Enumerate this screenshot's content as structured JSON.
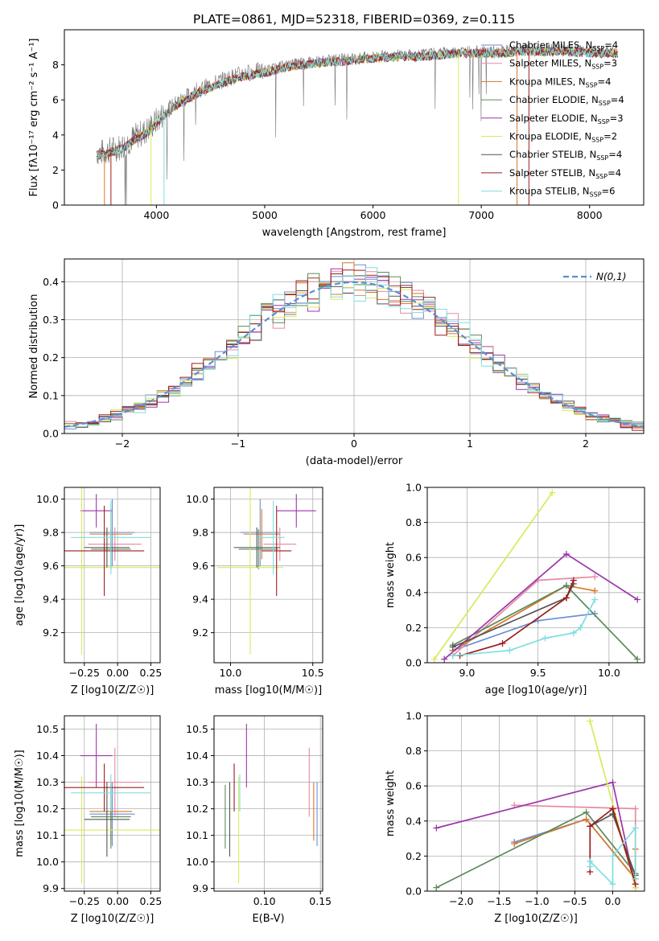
{
  "figure_title": "PLATE=0861, MJD=52318, FIBERID=0369, z=0.115",
  "models": [
    {
      "label": "Chabrier MILES, N",
      "sub": "SSP",
      "tail": "=4",
      "color": "#6c8ed6"
    },
    {
      "label": "Salpeter MILES, N",
      "sub": "SSP",
      "tail": "=3",
      "color": "#e68aa0"
    },
    {
      "label": "Kroupa MILES, N",
      "sub": "SSP",
      "tail": "=4",
      "color": "#d8772a"
    },
    {
      "label": "Chabrier ELODIE, N",
      "sub": "SSP",
      "tail": "=4",
      "color": "#5b8a5b"
    },
    {
      "label": "Salpeter ELODIE, N",
      "sub": "SSP",
      "tail": "=3",
      "color": "#9b37a8"
    },
    {
      "label": "Kroupa ELODIE, N",
      "sub": "SSP",
      "tail": "=2",
      "color": "#d9ea5a"
    },
    {
      "label": "Chabrier STELIB, N",
      "sub": "SSP",
      "tail": "=4",
      "color": "#555555"
    },
    {
      "label": "Salpeter STELIB, N",
      "sub": "SSP",
      "tail": "=4",
      "color": "#9e1c1c"
    },
    {
      "label": "Kroupa STELIB, N",
      "sub": "SSP",
      "tail": "=6",
      "color": "#7fdde0"
    }
  ],
  "chart_data": [
    {
      "id": "spectrum",
      "type": "line",
      "xlabel": "wavelength [Angstrom, rest frame]",
      "ylabel": "Flux [fλ10⁻¹⁷ erg cm⁻² s⁻¹ A⁻¹]",
      "xlim": [
        3150,
        8500
      ],
      "ylim": [
        0,
        10
      ],
      "xticks": [
        4000,
        5000,
        6000,
        7000,
        8000
      ],
      "yticks": [
        0,
        2,
        4,
        6,
        8
      ],
      "continuum": {
        "x": [
          3450,
          3500,
          3600,
          3700,
          3800,
          3900,
          4000,
          4100,
          4200,
          4400,
          4600,
          4800,
          5000,
          5200,
          5400,
          5600,
          5800,
          6000,
          6200,
          6400,
          6600,
          6800,
          7000,
          7200,
          7400,
          7600,
          7800,
          8000,
          8200,
          8260
        ],
        "y": [
          3.0,
          3.0,
          3.2,
          3.4,
          3.9,
          4.2,
          4.8,
          5.4,
          5.9,
          6.6,
          7.1,
          7.5,
          7.7,
          8.0,
          8.2,
          8.3,
          8.4,
          8.5,
          8.6,
          8.6,
          8.7,
          8.8,
          8.8,
          8.8,
          8.9,
          8.9,
          8.9,
          8.8,
          8.8,
          8.8
        ]
      },
      "grid": false
    },
    {
      "id": "residuals",
      "type": "histogram",
      "xlabel": "(data-model)/error",
      "ylabel": "Normed distribution",
      "xlim": [
        -2.5,
        2.5
      ],
      "ylim": [
        0,
        0.46
      ],
      "xticks": [
        -2,
        -1,
        0,
        1,
        2
      ],
      "yticks": [
        0.0,
        0.1,
        0.2,
        0.3,
        0.4
      ],
      "reference_label": "N(0,1)",
      "legend": "top-right",
      "grid": true
    },
    {
      "id": "age-vs-Z",
      "type": "errorbar",
      "xlabel": "Z [log10(Z/Z☉)]",
      "ylabel": "age  [log10(age/yr)]",
      "xlim": [
        -0.4,
        0.32
      ],
      "ylim": [
        9.02,
        10.07
      ],
      "xticks": [
        -0.25,
        0.0,
        0.25
      ],
      "yticks": [
        9.2,
        9.4,
        9.6,
        9.8,
        10.0
      ],
      "points": [
        {
          "x": -0.04,
          "y": 9.8,
          "xerr": 0.17,
          "yerr": 0.2
        },
        {
          "x": -0.02,
          "y": 9.73,
          "xerr": 0.2,
          "yerr": 0.1
        },
        {
          "x": -0.05,
          "y": 9.79,
          "xerr": 0.16,
          "yerr": 0.15
        },
        {
          "x": -0.05,
          "y": 9.7,
          "xerr": 0.15,
          "yerr": 0.12
        },
        {
          "x": -0.16,
          "y": 9.93,
          "xerr": 0.12,
          "yerr": 0.1
        },
        {
          "x": -0.27,
          "y": 9.59,
          "xerr": 0.6,
          "yerr": 0.52
        },
        {
          "x": -0.08,
          "y": 9.71,
          "xerr": 0.17,
          "yerr": 0.12
        },
        {
          "x": -0.1,
          "y": 9.69,
          "xerr": 0.3,
          "yerr": 0.27
        },
        {
          "x": -0.05,
          "y": 9.77,
          "xerr": 0.3,
          "yerr": 0.22
        }
      ],
      "grid": true
    },
    {
      "id": "age-vs-mass",
      "type": "errorbar",
      "xlabel": "mass [log10(M/M☉)]",
      "ylabel": "",
      "xlim": [
        9.9,
        10.56
      ],
      "ylim": [
        9.02,
        10.07
      ],
      "xticks": [
        10.0,
        10.5
      ],
      "yticks": [
        9.2,
        9.4,
        9.6,
        9.8,
        10.0
      ],
      "points": [
        {
          "x": 10.18,
          "y": 9.8,
          "xerr": 0.12,
          "yerr": 0.2
        },
        {
          "x": 10.3,
          "y": 9.73,
          "xerr": 0.1,
          "yerr": 0.1
        },
        {
          "x": 10.19,
          "y": 9.79,
          "xerr": 0.11,
          "yerr": 0.15
        },
        {
          "x": 10.17,
          "y": 9.7,
          "xerr": 0.12,
          "yerr": 0.12
        },
        {
          "x": 10.4,
          "y": 9.93,
          "xerr": 0.12,
          "yerr": 0.1
        },
        {
          "x": 10.12,
          "y": 9.59,
          "xerr": 0.2,
          "yerr": 0.52
        },
        {
          "x": 10.16,
          "y": 9.71,
          "xerr": 0.14,
          "yerr": 0.12
        },
        {
          "x": 10.28,
          "y": 9.69,
          "xerr": 0.09,
          "yerr": 0.27
        },
        {
          "x": 10.26,
          "y": 9.77,
          "xerr": 0.07,
          "yerr": 0.22
        }
      ],
      "grid": true
    },
    {
      "id": "mass-weight-vs-age",
      "type": "line",
      "xlabel": "age  [log10(age/yr)]",
      "ylabel": "mass weight",
      "xlim": [
        8.72,
        10.25
      ],
      "ylim": [
        0,
        1
      ],
      "xticks": [
        9.0,
        9.5,
        10.0
      ],
      "yticks": [
        0.0,
        0.2,
        0.4,
        0.6,
        0.8,
        1.0
      ],
      "series": [
        {
          "x": [
            8.9,
            9.5,
            9.9
          ],
          "y": [
            0.07,
            0.24,
            0.28
          ]
        },
        {
          "x": [
            8.9,
            9.5,
            9.9
          ],
          "y": [
            0.04,
            0.47,
            0.49
          ]
        },
        {
          "x": [
            8.9,
            9.7,
            9.9
          ],
          "y": [
            0.07,
            0.44,
            0.41
          ]
        },
        {
          "x": [
            8.9,
            9.7,
            10.2
          ],
          "y": [
            0.1,
            0.44,
            0.02
          ]
        },
        {
          "x": [
            8.84,
            9.7,
            10.2
          ],
          "y": [
            0.02,
            0.62,
            0.36
          ]
        },
        {
          "x": [
            8.77,
            9.6
          ],
          "y": [
            0.02,
            0.97
          ]
        },
        {
          "x": [
            8.9,
            9.7,
            9.75
          ],
          "y": [
            0.09,
            0.37,
            0.45
          ]
        },
        {
          "x": [
            8.95,
            9.25,
            9.7,
            9.75
          ],
          "y": [
            0.04,
            0.11,
            0.37,
            0.47
          ]
        },
        {
          "x": [
            8.9,
            9.3,
            9.55,
            9.75,
            9.8,
            9.9
          ],
          "y": [
            0.04,
            0.07,
            0.14,
            0.17,
            0.2,
            0.36
          ]
        }
      ],
      "grid": true
    },
    {
      "id": "mass-vs-Z",
      "type": "errorbar",
      "xlabel": "Z [log10(Z/Z☉)]",
      "ylabel": "mass [log10(M/M☉)]",
      "xlim": [
        -0.4,
        0.32
      ],
      "ylim": [
        9.89,
        10.55
      ],
      "xticks": [
        -0.25,
        0.0,
        0.25
      ],
      "yticks": [
        9.9,
        10.0,
        10.1,
        10.2,
        10.3,
        10.4,
        10.5
      ],
      "points": [
        {
          "x": -0.04,
          "y": 10.18,
          "xerr": 0.17,
          "yerr": 0.12
        },
        {
          "x": -0.02,
          "y": 10.3,
          "xerr": 0.2,
          "yerr": 0.13
        },
        {
          "x": -0.05,
          "y": 10.19,
          "xerr": 0.16,
          "yerr": 0.11
        },
        {
          "x": -0.05,
          "y": 10.17,
          "xerr": 0.15,
          "yerr": 0.12
        },
        {
          "x": -0.16,
          "y": 10.4,
          "xerr": 0.12,
          "yerr": 0.12
        },
        {
          "x": -0.27,
          "y": 10.12,
          "xerr": 0.6,
          "yerr": 0.2
        },
        {
          "x": -0.08,
          "y": 10.16,
          "xerr": 0.17,
          "yerr": 0.14
        },
        {
          "x": -0.1,
          "y": 10.28,
          "xerr": 0.3,
          "yerr": 0.09
        },
        {
          "x": -0.05,
          "y": 10.26,
          "xerr": 0.3,
          "yerr": 0.07
        }
      ],
      "grid": true
    },
    {
      "id": "mass-vs-EBV",
      "type": "errorbar",
      "xlabel": "E(B-V)",
      "ylabel": "",
      "xlim": [
        0.055,
        0.152
      ],
      "ylim": [
        9.89,
        10.55
      ],
      "xticks": [
        0.1,
        0.15
      ],
      "yticks": [
        9.9,
        10.0,
        10.1,
        10.2,
        10.3,
        10.4,
        10.5
      ],
      "points": [
        {
          "x": 0.147,
          "y": 10.18,
          "xerr": 0,
          "yerr": 0.12
        },
        {
          "x": 0.14,
          "y": 10.3,
          "xerr": 0,
          "yerr": 0.13
        },
        {
          "x": 0.144,
          "y": 10.19,
          "xerr": 0,
          "yerr": 0.11
        },
        {
          "x": 0.065,
          "y": 10.17,
          "xerr": 0,
          "yerr": 0.12
        },
        {
          "x": 0.084,
          "y": 10.4,
          "xerr": 0,
          "yerr": 0.12
        },
        {
          "x": 0.077,
          "y": 10.12,
          "xerr": 0,
          "yerr": 0.2
        },
        {
          "x": 0.069,
          "y": 10.16,
          "xerr": 0,
          "yerr": 0.14
        },
        {
          "x": 0.073,
          "y": 10.28,
          "xerr": 0,
          "yerr": 0.09
        },
        {
          "x": 0.078,
          "y": 10.26,
          "xerr": 0,
          "yerr": 0.07
        }
      ],
      "grid": true
    },
    {
      "id": "mass-weight-vs-Z",
      "type": "line",
      "xlabel": "Z [log10(Z/Z☉)]",
      "ylabel": "mass weight",
      "xlim": [
        -2.45,
        0.42
      ],
      "ylim": [
        0,
        1
      ],
      "xticks": [
        -2.0,
        -1.5,
        -1.0,
        -0.5,
        0.0
      ],
      "yticks": [
        0.0,
        0.2,
        0.4,
        0.6,
        0.8,
        1.0
      ],
      "series": [
        {
          "x": [
            -1.3,
            -0.35,
            0.3
          ],
          "y": [
            0.28,
            0.41,
            0.07
          ]
        },
        {
          "x": [
            -1.3,
            0.3,
            0.3
          ],
          "y": [
            0.49,
            0.47,
            0.04
          ]
        },
        {
          "x": [
            -1.3,
            -0.35,
            0.3,
            0.3
          ],
          "y": [
            0.27,
            0.41,
            0.07,
            0.24
          ]
        },
        {
          "x": [
            -2.33,
            -0.35,
            0.3
          ],
          "y": [
            0.02,
            0.45,
            0.1
          ]
        },
        {
          "x": [
            -2.33,
            0.0,
            0.3
          ],
          "y": [
            0.36,
            0.62,
            0.02
          ]
        },
        {
          "x": [
            -0.3,
            0.3
          ],
          "y": [
            0.97,
            0.02
          ]
        },
        {
          "x": [
            -0.3,
            0.0,
            0.3
          ],
          "y": [
            0.37,
            0.44,
            0.09
          ]
        },
        {
          "x": [
            -0.3,
            -0.3,
            0.0,
            0.3
          ],
          "y": [
            0.11,
            0.37,
            0.47,
            0.04
          ]
        },
        {
          "x": [
            -0.3,
            -0.3,
            0.0,
            0.0,
            0.3,
            0.3
          ],
          "y": [
            0.14,
            0.17,
            0.04,
            0.2,
            0.36,
            0.07
          ]
        }
      ],
      "grid": true
    }
  ]
}
